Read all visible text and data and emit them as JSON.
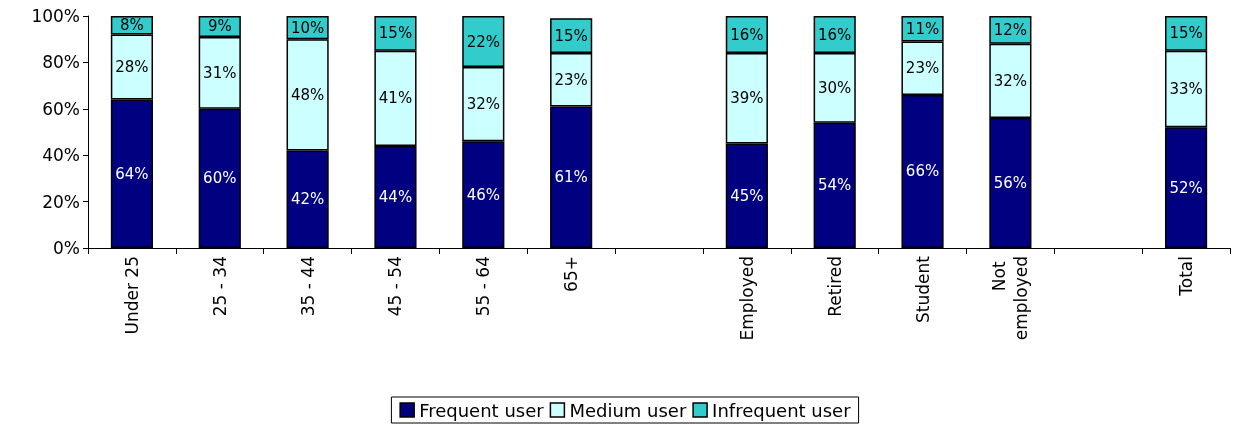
{
  "chart_data": {
    "type": "bar",
    "stacked": true,
    "categories": [
      "Under 25",
      "25 - 34",
      "35 - 44",
      "45 - 54",
      "55 - 64",
      "65+",
      null,
      "Employed",
      "Retired",
      "Student",
      "Not employed",
      null,
      "Total"
    ],
    "series": [
      {
        "name": "Frequent user",
        "color": "#000080",
        "values": [
          64,
          60,
          42,
          44,
          46,
          61,
          null,
          45,
          54,
          66,
          56,
          null,
          52
        ],
        "value_labels": [
          "64%",
          "60%",
          "42%",
          "44%",
          "46%",
          "61%",
          null,
          "45%",
          "54%",
          "66%",
          "56%",
          null,
          "52%"
        ]
      },
      {
        "name": "Medium user",
        "color": "#ccffff",
        "values": [
          28,
          31,
          48,
          41,
          32,
          23,
          null,
          39,
          30,
          23,
          32,
          null,
          33
        ],
        "value_labels": [
          "28%",
          "31%",
          "48%",
          "41%",
          "32%",
          "23%",
          null,
          "39%",
          "30%",
          "23%",
          "32%",
          null,
          "33%"
        ]
      },
      {
        "name": "Infrequent user",
        "color": "#33cccc",
        "values": [
          8,
          9,
          10,
          15,
          22,
          15,
          null,
          16,
          16,
          11,
          12,
          null,
          15
        ],
        "value_labels": [
          "8%",
          "9%",
          "10%",
          "15%",
          "22%",
          "15%",
          null,
          "16%",
          "16%",
          "11%",
          "12%",
          null,
          "15%"
        ]
      }
    ],
    "ylim": [
      0,
      100
    ],
    "yticks": [
      {
        "value": 0,
        "label": "0%"
      },
      {
        "value": 20,
        "label": "20%"
      },
      {
        "value": 40,
        "label": "40%"
      },
      {
        "value": 60,
        "label": "60%"
      },
      {
        "value": 80,
        "label": "80%"
      },
      {
        "value": 100,
        "label": "100%"
      }
    ],
    "grid": false,
    "legend": "bottom"
  }
}
